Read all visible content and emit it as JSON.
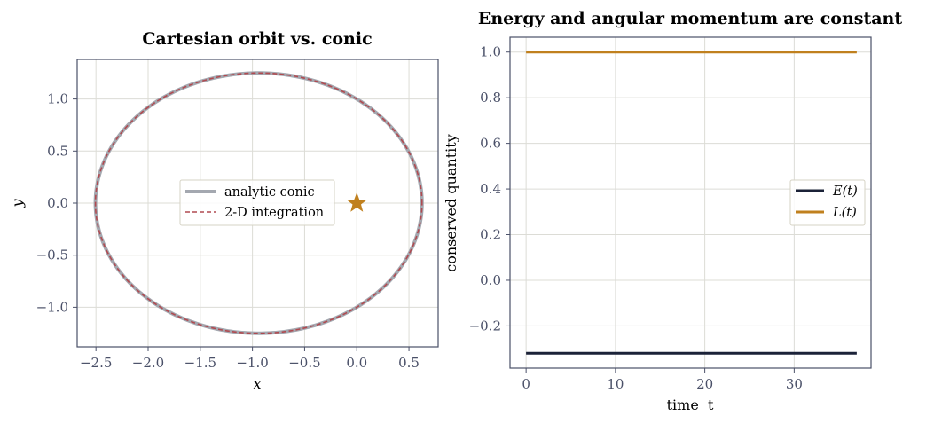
{
  "chart_data": [
    {
      "type": "line",
      "title": "Cartesian orbit vs. conic",
      "xlabel": "x",
      "ylabel": "y",
      "xlim": [
        -2.68,
        0.78
      ],
      "ylim": [
        -1.38,
        1.38
      ],
      "xticks": [
        -2.5,
        -2.0,
        -1.5,
        -1.0,
        -0.5,
        0.0,
        0.5
      ],
      "xtick_labels": [
        "−2.5",
        "−2.0",
        "−1.5",
        "−1.0",
        "−0.5",
        "0.0",
        "0.5"
      ],
      "yticks": [
        -1.0,
        -0.5,
        0.0,
        0.5,
        1.0
      ],
      "ytick_labels": [
        "−1.0",
        "−0.5",
        "0.0",
        "0.5",
        "1.0"
      ],
      "grid": true,
      "legend_position": "center",
      "ellipse": {
        "center_x": -0.94,
        "center_y": 0.0,
        "semi_major": 1.565,
        "semi_minor": 1.25
      },
      "focus_marker": {
        "x": 0.0,
        "y": 0.0,
        "shape": "star",
        "color": "#c0801e"
      },
      "series": [
        {
          "name": "analytic conic",
          "style": "solid",
          "color": "#a4a8b0"
        },
        {
          "name": "2-D integration",
          "style": "dashed",
          "color": "#b04a50"
        }
      ]
    },
    {
      "type": "line",
      "title": "Energy and angular momentum are constant",
      "xlabel": "time  t",
      "ylabel": "conserved quantity",
      "xlim": [
        -1.8,
        38.6
      ],
      "ylim": [
        -0.385,
        1.065
      ],
      "xticks": [
        0,
        10,
        20,
        30
      ],
      "xtick_labels": [
        "0",
        "10",
        "20",
        "30"
      ],
      "yticks": [
        -0.2,
        0.0,
        0.2,
        0.4,
        0.6,
        0.8,
        1.0
      ],
      "ytick_labels": [
        "−0.2",
        "0.0",
        "0.2",
        "0.4",
        "0.6",
        "0.8",
        "1.0"
      ],
      "grid": true,
      "legend_position": "center-right",
      "series": [
        {
          "name": "E(t)",
          "color": "#1b2238",
          "x": [
            0,
            37
          ],
          "y": [
            -0.32,
            -0.32
          ]
        },
        {
          "name": "L(t)",
          "color": "#c0801e",
          "x": [
            0,
            37
          ],
          "y": [
            1.0,
            1.0
          ]
        }
      ]
    }
  ]
}
